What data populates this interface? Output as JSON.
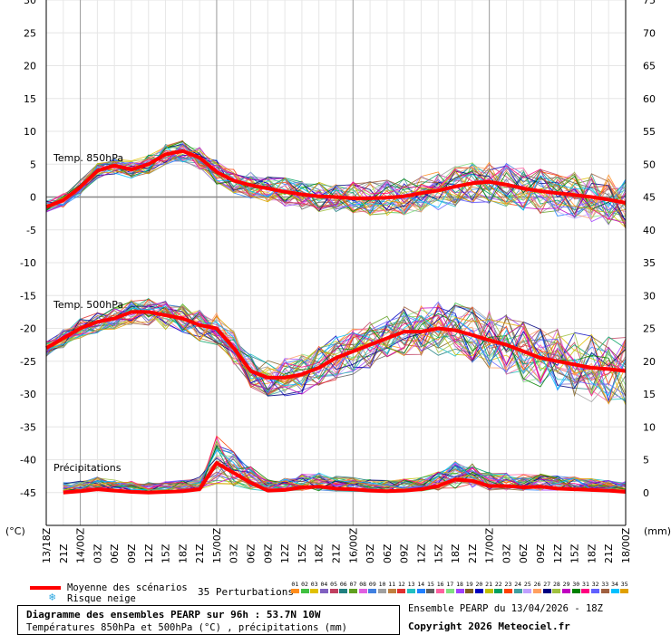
{
  "chart_data": {
    "type": "line",
    "title": "Diagramme des ensembles PEARP sur 96h : 53.7N 10W",
    "subtitle": "Températures 850hPa et 500hPa (°C) , précipitations (mm)",
    "left_axis": {
      "unit": "(°C)",
      "min": -50,
      "max": 30,
      "ticks": [
        30,
        25,
        20,
        15,
        10,
        5,
        0,
        -5,
        -10,
        -15,
        -20,
        -25,
        -30,
        -35,
        -40,
        -45
      ]
    },
    "right_axis": {
      "unit": "(mm)",
      "min": -5,
      "max": 75,
      "ticks": [
        75,
        70,
        65,
        60,
        55,
        50,
        45,
        40,
        35,
        30,
        25,
        20,
        15,
        10,
        5,
        0
      ]
    },
    "x_ticks": [
      "13/18Z",
      "21Z",
      "14/00Z",
      "03Z",
      "06Z",
      "09Z",
      "12Z",
      "15Z",
      "18Z",
      "21Z",
      "15/00Z",
      "03Z",
      "06Z",
      "09Z",
      "12Z",
      "15Z",
      "18Z",
      "21Z",
      "16/00Z",
      "03Z",
      "06Z",
      "09Z",
      "12Z",
      "15Z",
      "18Z",
      "21Z",
      "17/00Z",
      "03Z",
      "06Z",
      "09Z",
      "12Z",
      "15Z",
      "18Z",
      "21Z",
      "18/00Z"
    ],
    "zero_line": 0,
    "panel_labels": [
      "Temp. 850hPa",
      "Temp. 500hPa",
      "Précipitations"
    ],
    "series": [
      {
        "name": "Temp. 850hPa",
        "axis": "left",
        "values": [
          -1.5,
          -0.5,
          1.5,
          4.0,
          4.8,
          4.2,
          5.0,
          6.5,
          7.0,
          6.0,
          3.8,
          2.5,
          1.8,
          1.3,
          0.8,
          0.4,
          0.1,
          0.0,
          -0.2,
          -0.2,
          -0.1,
          0.1,
          0.6,
          1.0,
          1.6,
          2.1,
          2.3,
          1.9,
          1.3,
          0.9,
          0.6,
          0.3,
          0.0,
          -0.4,
          -0.9
        ]
      },
      {
        "name": "Temp. 500hPa",
        "axis": "left",
        "values": [
          -23.0,
          -21.5,
          -20.0,
          -19.0,
          -18.5,
          -17.5,
          -17.5,
          -18.0,
          -18.5,
          -19.5,
          -20.0,
          -23.0,
          -26.5,
          -27.5,
          -27.5,
          -27.0,
          -26.0,
          -24.5,
          -23.5,
          -22.5,
          -21.5,
          -20.5,
          -20.5,
          -20.0,
          -20.3,
          -21.0,
          -21.8,
          -22.5,
          -23.5,
          -24.5,
          -25.0,
          -25.5,
          -26.0,
          -26.2,
          -26.5
        ]
      },
      {
        "name": "Précipitations",
        "axis": "right",
        "values": [
          null,
          0,
          0.2,
          0.5,
          0.3,
          0.1,
          0.0,
          0.1,
          0.2,
          0.5,
          4.5,
          3.0,
          1.5,
          0.3,
          0.4,
          0.8,
          0.9,
          0.6,
          0.5,
          0.3,
          0.2,
          0.3,
          0.5,
          1.0,
          2.0,
          1.8,
          1.0,
          1.0,
          0.8,
          0.9,
          0.6,
          0.5,
          0.4,
          0.3,
          0.1
        ]
      }
    ]
  },
  "legend": {
    "mean_label": "Moyenne des scénarios",
    "snow_label": "Risque neige",
    "perturbations_label": "35 Perturbations",
    "mean_color": "#ff0000",
    "snow_color": "#2aa6e0",
    "perturbations": [
      {
        "num": "01",
        "color": "#ff8c1a"
      },
      {
        "num": "02",
        "color": "#40c040"
      },
      {
        "num": "03",
        "color": "#e0c000"
      },
      {
        "num": "04",
        "color": "#8060c0"
      },
      {
        "num": "05",
        "color": "#c04060"
      },
      {
        "num": "06",
        "color": "#208080"
      },
      {
        "num": "07",
        "color": "#60a020"
      },
      {
        "num": "08",
        "color": "#e060e0"
      },
      {
        "num": "09",
        "color": "#4080e0"
      },
      {
        "num": "10",
        "color": "#a0a0a0"
      },
      {
        "num": "11",
        "color": "#c08040"
      },
      {
        "num": "12",
        "color": "#e03030"
      },
      {
        "num": "13",
        "color": "#20c0c0"
      },
      {
        "num": "14",
        "color": "#2080ff"
      },
      {
        "num": "15",
        "color": "#606060"
      },
      {
        "num": "16",
        "color": "#ff60a0"
      },
      {
        "num": "17",
        "color": "#80e080"
      },
      {
        "num": "18",
        "color": "#a040ff"
      },
      {
        "num": "19",
        "color": "#806020"
      },
      {
        "num": "20",
        "color": "#0000c0"
      },
      {
        "num": "21",
        "color": "#c0c000"
      },
      {
        "num": "22",
        "color": "#00a060"
      },
      {
        "num": "23",
        "color": "#ff4000"
      },
      {
        "num": "24",
        "color": "#40a0a0"
      },
      {
        "num": "25",
        "color": "#c0a0ff"
      },
      {
        "num": "26",
        "color": "#ffa060"
      },
      {
        "num": "27",
        "color": "#000080"
      },
      {
        "num": "28",
        "color": "#a0c040"
      },
      {
        "num": "29",
        "color": "#c000c0"
      },
      {
        "num": "30",
        "color": "#008000"
      },
      {
        "num": "31",
        "color": "#ff0080"
      },
      {
        "num": "32",
        "color": "#6060ff"
      },
      {
        "num": "33",
        "color": "#a06040"
      },
      {
        "num": "34",
        "color": "#00c0ff"
      },
      {
        "num": "35",
        "color": "#e0a000"
      }
    ]
  },
  "footer": {
    "title": "Diagramme des ensembles PEARP sur 96h : 53.7N 10W",
    "subtitle": "Températures 850hPa et 500hPa (°C) , précipitations (mm)",
    "ensemble": "Ensemble PEARP du 13/04/2026 - 18Z",
    "copyright": "Copyright 2026 Meteociel.fr"
  }
}
